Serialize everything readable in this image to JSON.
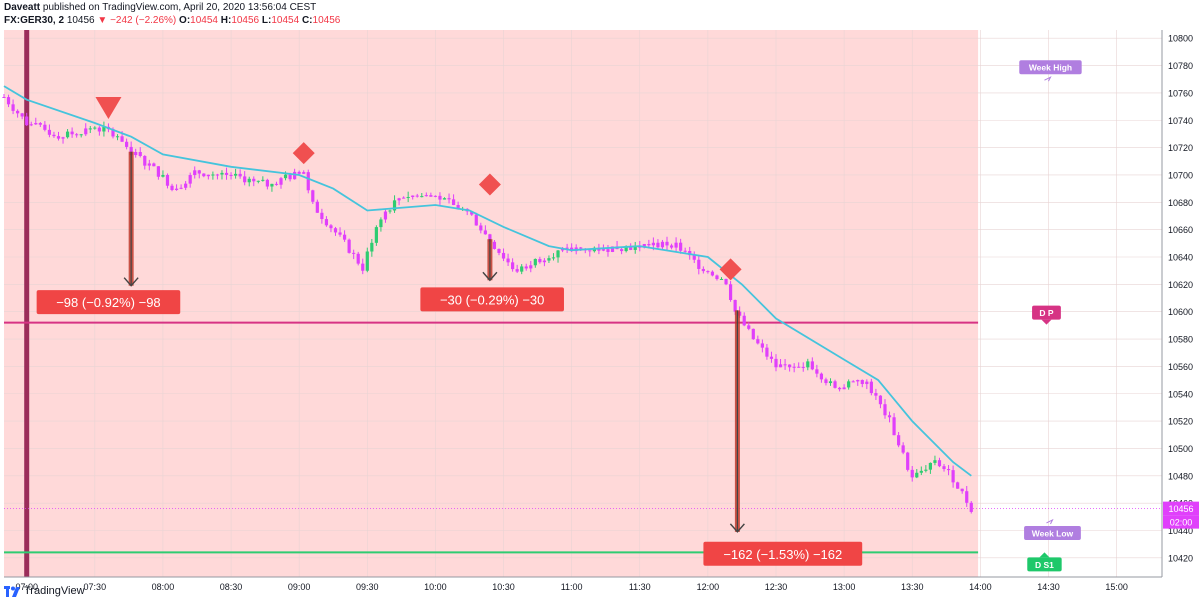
{
  "header": {
    "author": "Daveatt",
    "published": "published on TradingView.com, April 20, 2020 13:56:04 CEST",
    "symbol": "FX:GER30, 2",
    "last": "10456",
    "change": "−242 (−2.26%)",
    "o_label": "O:",
    "o_value": "10454",
    "h_label": "H:",
    "h_value": "10456",
    "l_label": "L:",
    "l_value": "10454",
    "c_label": "C:",
    "c_value": "10456"
  },
  "footer": {
    "brand": "TradingView"
  },
  "colors": {
    "session_bg": "#ffd9d9",
    "bull": "#2ecc71",
    "bear": "#e040fb",
    "ma": "#45c4dc",
    "pivot": "#d63384",
    "support": "#2ecc71",
    "label_red": "#f04545",
    "marker_red": "#f05050",
    "vline": "#9b2d5a",
    "price_tag": "#e040fb",
    "week_tag": "#b07ee0",
    "ds1_tag": "#1ec86a"
  },
  "chart_data": {
    "type": "candlestick",
    "symbol": "FX:GER30",
    "timeframe": "2",
    "y_range": [
      10406,
      10806
    ],
    "x_range": [
      "06:50",
      "15:20"
    ],
    "y_ticks": [
      10800,
      10780,
      10760,
      10740,
      10720,
      10700,
      10680,
      10660,
      10640,
      10620,
      10600,
      10580,
      10560,
      10540,
      10520,
      10500,
      10480,
      10460,
      10440,
      10420
    ],
    "x_ticks": [
      "07:00",
      "07:30",
      "08:00",
      "08:30",
      "09:00",
      "09:30",
      "10:00",
      "10:30",
      "11:00",
      "11:30",
      "12:00",
      "12:30",
      "13:00",
      "13:30",
      "14:00",
      "14:30",
      "15:00"
    ],
    "session_end": "13:59",
    "vertical_marker": "07:00",
    "current_price": {
      "value": "10456",
      "countdown": "02:00"
    },
    "levels": [
      {
        "name": "D P",
        "value": 10592
      },
      {
        "name": "D S1",
        "value": 10424
      },
      {
        "name": "Week High",
        "value": 10800
      },
      {
        "name": "Week Low",
        "value": 10436
      }
    ],
    "keypoints": [
      {
        "t": "06:50",
        "p": 10757
      },
      {
        "t": "07:00",
        "p": 10738
      },
      {
        "t": "07:15",
        "p": 10728
      },
      {
        "t": "07:30",
        "p": 10735
      },
      {
        "t": "07:40",
        "p": 10730
      },
      {
        "t": "07:46",
        "p": 10717
      },
      {
        "t": "07:55",
        "p": 10706
      },
      {
        "t": "08:05",
        "p": 10690
      },
      {
        "t": "08:15",
        "p": 10702
      },
      {
        "t": "08:30",
        "p": 10700
      },
      {
        "t": "08:45",
        "p": 10693
      },
      {
        "t": "09:02",
        "p": 10702
      },
      {
        "t": "09:05",
        "p": 10680
      },
      {
        "t": "09:20",
        "p": 10650
      },
      {
        "t": "09:28",
        "p": 10632
      },
      {
        "t": "09:35",
        "p": 10668
      },
      {
        "t": "09:45",
        "p": 10685
      },
      {
        "t": "10:00",
        "p": 10684
      },
      {
        "t": "10:15",
        "p": 10672
      },
      {
        "t": "10:24",
        "p": 10652
      },
      {
        "t": "10:35",
        "p": 10630
      },
      {
        "t": "10:50",
        "p": 10642
      },
      {
        "t": "11:00",
        "p": 10645
      },
      {
        "t": "11:30",
        "p": 10648
      },
      {
        "t": "11:45",
        "p": 10650
      },
      {
        "t": "11:55",
        "p": 10635
      },
      {
        "t": "12:08",
        "p": 10622
      },
      {
        "t": "12:12",
        "p": 10600
      },
      {
        "t": "12:20",
        "p": 10580
      },
      {
        "t": "12:30",
        "p": 10560
      },
      {
        "t": "12:45",
        "p": 10562
      },
      {
        "t": "12:55",
        "p": 10545
      },
      {
        "t": "13:10",
        "p": 10548
      },
      {
        "t": "13:20",
        "p": 10520
      },
      {
        "t": "13:30",
        "p": 10478
      },
      {
        "t": "13:40",
        "p": 10492
      },
      {
        "t": "13:48",
        "p": 10478
      },
      {
        "t": "13:56",
        "p": 10456
      }
    ],
    "ma_points": [
      {
        "t": "06:50",
        "p": 10765
      },
      {
        "t": "07:00",
        "p": 10755
      },
      {
        "t": "07:30",
        "p": 10738
      },
      {
        "t": "07:46",
        "p": 10728
      },
      {
        "t": "08:00",
        "p": 10715
      },
      {
        "t": "08:30",
        "p": 10706
      },
      {
        "t": "09:00",
        "p": 10700
      },
      {
        "t": "09:15",
        "p": 10690
      },
      {
        "t": "09:30",
        "p": 10674
      },
      {
        "t": "10:00",
        "p": 10678
      },
      {
        "t": "10:15",
        "p": 10674
      },
      {
        "t": "10:30",
        "p": 10662
      },
      {
        "t": "10:50",
        "p": 10648
      },
      {
        "t": "11:00",
        "p": 10645
      },
      {
        "t": "11:30",
        "p": 10648
      },
      {
        "t": "12:00",
        "p": 10640
      },
      {
        "t": "12:15",
        "p": 10620
      },
      {
        "t": "12:30",
        "p": 10595
      },
      {
        "t": "13:00",
        "p": 10565
      },
      {
        "t": "13:15",
        "p": 10550
      },
      {
        "t": "13:30",
        "p": 10520
      },
      {
        "t": "13:48",
        "p": 10490
      },
      {
        "t": "13:56",
        "p": 10480
      }
    ],
    "signals": [
      {
        "type": "triangle-down",
        "t": "07:36",
        "p": 10749
      },
      {
        "type": "diamond",
        "t": "09:02",
        "p": 10716
      },
      {
        "type": "diamond",
        "t": "10:24",
        "p": 10693
      },
      {
        "type": "diamond",
        "t": "12:10",
        "p": 10631
      }
    ],
    "moves": [
      {
        "t": "07:46",
        "from": 10717,
        "to": 10619,
        "label": "−98 (−0.92%) −98",
        "label_t": "07:36",
        "label_p": 10607
      },
      {
        "t": "10:24",
        "from": 10653,
        "to": 10623,
        "label": "−30 (−0.29%) −30",
        "label_t": "10:25",
        "label_p": 10609
      },
      {
        "t": "12:13",
        "from": 10601,
        "to": 10439,
        "label": "−162 (−1.53%) −162",
        "label_t": "12:33",
        "label_p": 10423
      }
    ]
  }
}
